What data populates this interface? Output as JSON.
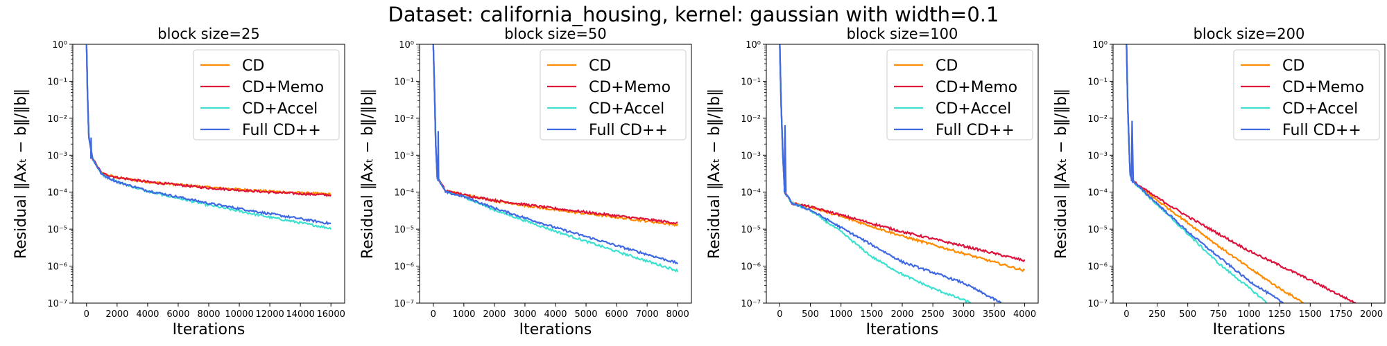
{
  "figure": {
    "title": "Dataset: california_housing, kernel: gaussian with width=0.1"
  },
  "chart_data": [
    {
      "type": "line",
      "title": "block size=25",
      "xlabel": "Iterations",
      "ylabel": "Residual ‖Axₜ − b‖/‖b‖",
      "xlim": [
        -900,
        16900
      ],
      "ylim": [
        1e-07,
        1
      ],
      "yscale": "log",
      "xticks": [
        0,
        2000,
        4000,
        6000,
        8000,
        10000,
        12000,
        14000,
        16000
      ],
      "yticks": [
        "10⁻⁷",
        "10⁻⁶",
        "10⁻⁵",
        "10⁻⁴",
        "10⁻³",
        "10⁻²",
        "10⁻¹",
        "10⁰"
      ],
      "legend": "top-right",
      "series": [
        {
          "name": "CD",
          "color": "#ff8c00",
          "points": [
            [
              0,
              1
            ],
            [
              60,
              0.05
            ],
            [
              150,
              0.003
            ],
            [
              400,
              0.0008
            ],
            [
              1000,
              0.00032
            ],
            [
              2000,
              0.00025
            ],
            [
              4000,
              0.00019
            ],
            [
              8000,
              0.000135
            ],
            [
              12000,
              0.000105
            ],
            [
              16000,
              8.8e-05
            ]
          ],
          "spike": null
        },
        {
          "name": "CD+Memo",
          "color": "#dc143c",
          "points": [
            [
              0,
              1
            ],
            [
              60,
              0.05
            ],
            [
              150,
              0.003
            ],
            [
              400,
              0.0008
            ],
            [
              1000,
              0.00032
            ],
            [
              2000,
              0.00025
            ],
            [
              4000,
              0.00019
            ],
            [
              8000,
              0.00013
            ],
            [
              12000,
              0.0001
            ],
            [
              16000,
              8.3e-05
            ]
          ],
          "spike": null
        },
        {
          "name": "CD+Accel",
          "color": "#40e0d0",
          "points": [
            [
              0,
              1
            ],
            [
              60,
              0.05
            ],
            [
              150,
              0.003
            ],
            [
              400,
              0.0008
            ],
            [
              1000,
              0.0003
            ],
            [
              2000,
              0.00019
            ],
            [
              4000,
              0.000105
            ],
            [
              8000,
              4.5e-05
            ],
            [
              12000,
              2.1e-05
            ],
            [
              16000,
              1.05e-05
            ]
          ],
          "spike": null
        },
        {
          "name": "Full CD++",
          "color": "#4169e1",
          "points": [
            [
              0,
              1
            ],
            [
              60,
              0.05
            ],
            [
              150,
              0.003
            ],
            [
              400,
              0.0008
            ],
            [
              1000,
              0.0003
            ],
            [
              2000,
              0.00019
            ],
            [
              4000,
              0.00011
            ],
            [
              8000,
              5e-05
            ],
            [
              12000,
              2.6e-05
            ],
            [
              16000,
              1.4e-05
            ]
          ],
          "spike": [
            [
              280,
              0.0008
            ],
            [
              300,
              0.003
            ],
            [
              320,
              0.0008
            ]
          ]
        }
      ]
    },
    {
      "type": "line",
      "title": "block size=50",
      "xlabel": "Iterations",
      "ylabel": "Residual ‖Axₜ − b‖/‖b‖",
      "xlim": [
        -450,
        8450
      ],
      "ylim": [
        1e-07,
        1
      ],
      "yscale": "log",
      "xticks": [
        0,
        1000,
        2000,
        3000,
        4000,
        5000,
        6000,
        7000,
        8000
      ],
      "yticks": [
        "10⁻⁷",
        "10⁻⁶",
        "10⁻⁵",
        "10⁻⁴",
        "10⁻³",
        "10⁻²",
        "10⁻¹",
        "10⁰"
      ],
      "legend": "top-right",
      "series": [
        {
          "name": "CD",
          "color": "#ff8c00",
          "points": [
            [
              0,
              1
            ],
            [
              40,
              0.05
            ],
            [
              80,
              0.002
            ],
            [
              130,
              0.00025
            ],
            [
              400,
              0.00011
            ],
            [
              1000,
              8.5e-05
            ],
            [
              2000,
              5.8e-05
            ],
            [
              4000,
              3.3e-05
            ],
            [
              6000,
              2.1e-05
            ],
            [
              8000,
              1.3e-05
            ]
          ],
          "spike": null
        },
        {
          "name": "CD+Memo",
          "color": "#dc143c",
          "points": [
            [
              0,
              1
            ],
            [
              40,
              0.05
            ],
            [
              80,
              0.002
            ],
            [
              130,
              0.00025
            ],
            [
              400,
              0.00011
            ],
            [
              1000,
              8.5e-05
            ],
            [
              2000,
              6e-05
            ],
            [
              4000,
              3.6e-05
            ],
            [
              6000,
              2.3e-05
            ],
            [
              8000,
              1.45e-05
            ]
          ],
          "spike": null
        },
        {
          "name": "CD+Accel",
          "color": "#40e0d0",
          "points": [
            [
              0,
              1
            ],
            [
              40,
              0.05
            ],
            [
              80,
              0.002
            ],
            [
              130,
              0.00025
            ],
            [
              400,
              0.0001
            ],
            [
              1000,
              7.5e-05
            ],
            [
              2000,
              3.3e-05
            ],
            [
              4000,
              8.8e-06
            ],
            [
              6000,
              2.5e-06
            ],
            [
              8000,
              7.5e-07
            ]
          ],
          "spike": null
        },
        {
          "name": "Full CD++",
          "color": "#4169e1",
          "points": [
            [
              0,
              1
            ],
            [
              40,
              0.05
            ],
            [
              80,
              0.002
            ],
            [
              130,
              0.00025
            ],
            [
              400,
              0.0001
            ],
            [
              1000,
              7.6e-05
            ],
            [
              2000,
              3.7e-05
            ],
            [
              4000,
              1.1e-05
            ],
            [
              6000,
              3.6e-06
            ],
            [
              8000,
              1.2e-06
            ]
          ],
          "spike": [
            [
              150,
              0.0002
            ],
            [
              160,
              0.0045
            ],
            [
              175,
              0.0002
            ]
          ]
        }
      ]
    },
    {
      "type": "line",
      "title": "block size=100",
      "xlabel": "Iterations",
      "ylabel": "Residual ‖Axₜ − b‖/‖b‖",
      "xlim": [
        -220,
        4220
      ],
      "ylim": [
        1e-07,
        1
      ],
      "yscale": "log",
      "xticks": [
        0,
        500,
        1000,
        1500,
        2000,
        2500,
        3000,
        3500,
        4000
      ],
      "yticks": [
        "10⁻⁷",
        "10⁻⁶",
        "10⁻⁵",
        "10⁻⁴",
        "10⁻³",
        "10⁻²",
        "10⁻¹",
        "10⁰"
      ],
      "legend": "top-right",
      "series": [
        {
          "name": "CD",
          "color": "#ff8c00",
          "points": [
            [
              0,
              1
            ],
            [
              20,
              0.03
            ],
            [
              50,
              0.001
            ],
            [
              80,
              0.0001
            ],
            [
              200,
              5e-05
            ],
            [
              500,
              4e-05
            ],
            [
              1000,
              2.2e-05
            ],
            [
              2000,
              6.5e-06
            ],
            [
              3000,
              2.2e-06
            ],
            [
              4000,
              7.5e-07
            ]
          ],
          "spike": null
        },
        {
          "name": "CD+Memo",
          "color": "#dc143c",
          "points": [
            [
              0,
              1
            ],
            [
              20,
              0.03
            ],
            [
              50,
              0.001
            ],
            [
              80,
              0.0001
            ],
            [
              200,
              5e-05
            ],
            [
              500,
              4e-05
            ],
            [
              1000,
              2.4e-05
            ],
            [
              2000,
              8.5e-06
            ],
            [
              3000,
              3.5e-06
            ],
            [
              4000,
              1.4e-06
            ]
          ],
          "spike": null
        },
        {
          "name": "CD+Accel",
          "color": "#40e0d0",
          "points": [
            [
              0,
              1
            ],
            [
              20,
              0.03
            ],
            [
              50,
              0.001
            ],
            [
              80,
              0.0001
            ],
            [
              200,
              5e-05
            ],
            [
              500,
              3.2e-05
            ],
            [
              1000,
              8.5e-06
            ],
            [
              1500,
              1.8e-06
            ],
            [
              2000,
              6e-07
            ],
            [
              2500,
              2.5e-07
            ],
            [
              3130,
              1e-07
            ]
          ],
          "spike": null
        },
        {
          "name": "Full CD++",
          "color": "#4169e1",
          "points": [
            [
              0,
              1
            ],
            [
              20,
              0.03
            ],
            [
              50,
              0.001
            ],
            [
              80,
              0.0001
            ],
            [
              200,
              5e-05
            ],
            [
              500,
              3.3e-05
            ],
            [
              1000,
              1.1e-05
            ],
            [
              1500,
              3.8e-06
            ],
            [
              2000,
              1.3e-06
            ],
            [
              3000,
              3.5e-07
            ],
            [
              3620,
              1e-07
            ]
          ],
          "spike": [
            [
              75,
              0.0001
            ],
            [
              85,
              0.0065
            ],
            [
              100,
              0.0001
            ]
          ]
        }
      ]
    },
    {
      "type": "line",
      "title": "block size=200",
      "xlabel": "Iterations",
      "ylabel": "Residual ‖Axₜ − b‖/‖b‖",
      "xlim": [
        -110,
        2110
      ],
      "ylim": [
        1e-07,
        1
      ],
      "yscale": "log",
      "xticks": [
        0,
        250,
        500,
        750,
        1000,
        1250,
        1500,
        1750,
        2000
      ],
      "yticks": [
        "10⁻⁷",
        "10⁻⁶",
        "10⁻⁵",
        "10⁻⁴",
        "10⁻³",
        "10⁻²",
        "10⁻¹",
        "10⁰"
      ],
      "legend": "top-right",
      "series": [
        {
          "name": "CD",
          "color": "#ff8c00",
          "points": [
            [
              0,
              1
            ],
            [
              10,
              0.02
            ],
            [
              20,
              0.002
            ],
            [
              30,
              0.0003
            ],
            [
              50,
              0.0002
            ],
            [
              200,
              8e-05
            ],
            [
              500,
              1.5e-05
            ],
            [
              750,
              3.5e-06
            ],
            [
              1000,
              9e-07
            ],
            [
              1250,
              2.5e-07
            ],
            [
              1450,
              1e-07
            ]
          ],
          "spike": null
        },
        {
          "name": "CD+Memo",
          "color": "#dc143c",
          "points": [
            [
              0,
              1
            ],
            [
              10,
              0.02
            ],
            [
              20,
              0.002
            ],
            [
              30,
              0.0003
            ],
            [
              50,
              0.0002
            ],
            [
              200,
              9e-05
            ],
            [
              500,
              2.2e-05
            ],
            [
              750,
              7.5e-06
            ],
            [
              1000,
              2.6e-06
            ],
            [
              1500,
              4.2e-07
            ],
            [
              1870,
              1e-07
            ]
          ],
          "spike": null
        },
        {
          "name": "CD+Accel",
          "color": "#40e0d0",
          "points": [
            [
              0,
              1
            ],
            [
              10,
              0.02
            ],
            [
              20,
              0.002
            ],
            [
              30,
              0.0003
            ],
            [
              50,
              0.0002
            ],
            [
              200,
              6.5e-05
            ],
            [
              500,
              7.5e-06
            ],
            [
              750,
              1.2e-06
            ],
            [
              1000,
              2.6e-07
            ],
            [
              1150,
              1e-07
            ]
          ],
          "spike": null
        },
        {
          "name": "Full CD++",
          "color": "#4169e1",
          "points": [
            [
              0,
              1
            ],
            [
              10,
              0.02
            ],
            [
              20,
              0.002
            ],
            [
              30,
              0.0003
            ],
            [
              50,
              0.0002
            ],
            [
              200,
              7e-05
            ],
            [
              500,
              8.5e-06
            ],
            [
              750,
              1.8e-06
            ],
            [
              1000,
              4e-07
            ],
            [
              1280,
              1e-07
            ]
          ],
          "spike": [
            [
              40,
              0.0002
            ],
            [
              45,
              0.0085
            ],
            [
              55,
              0.0002
            ]
          ]
        }
      ]
    }
  ]
}
